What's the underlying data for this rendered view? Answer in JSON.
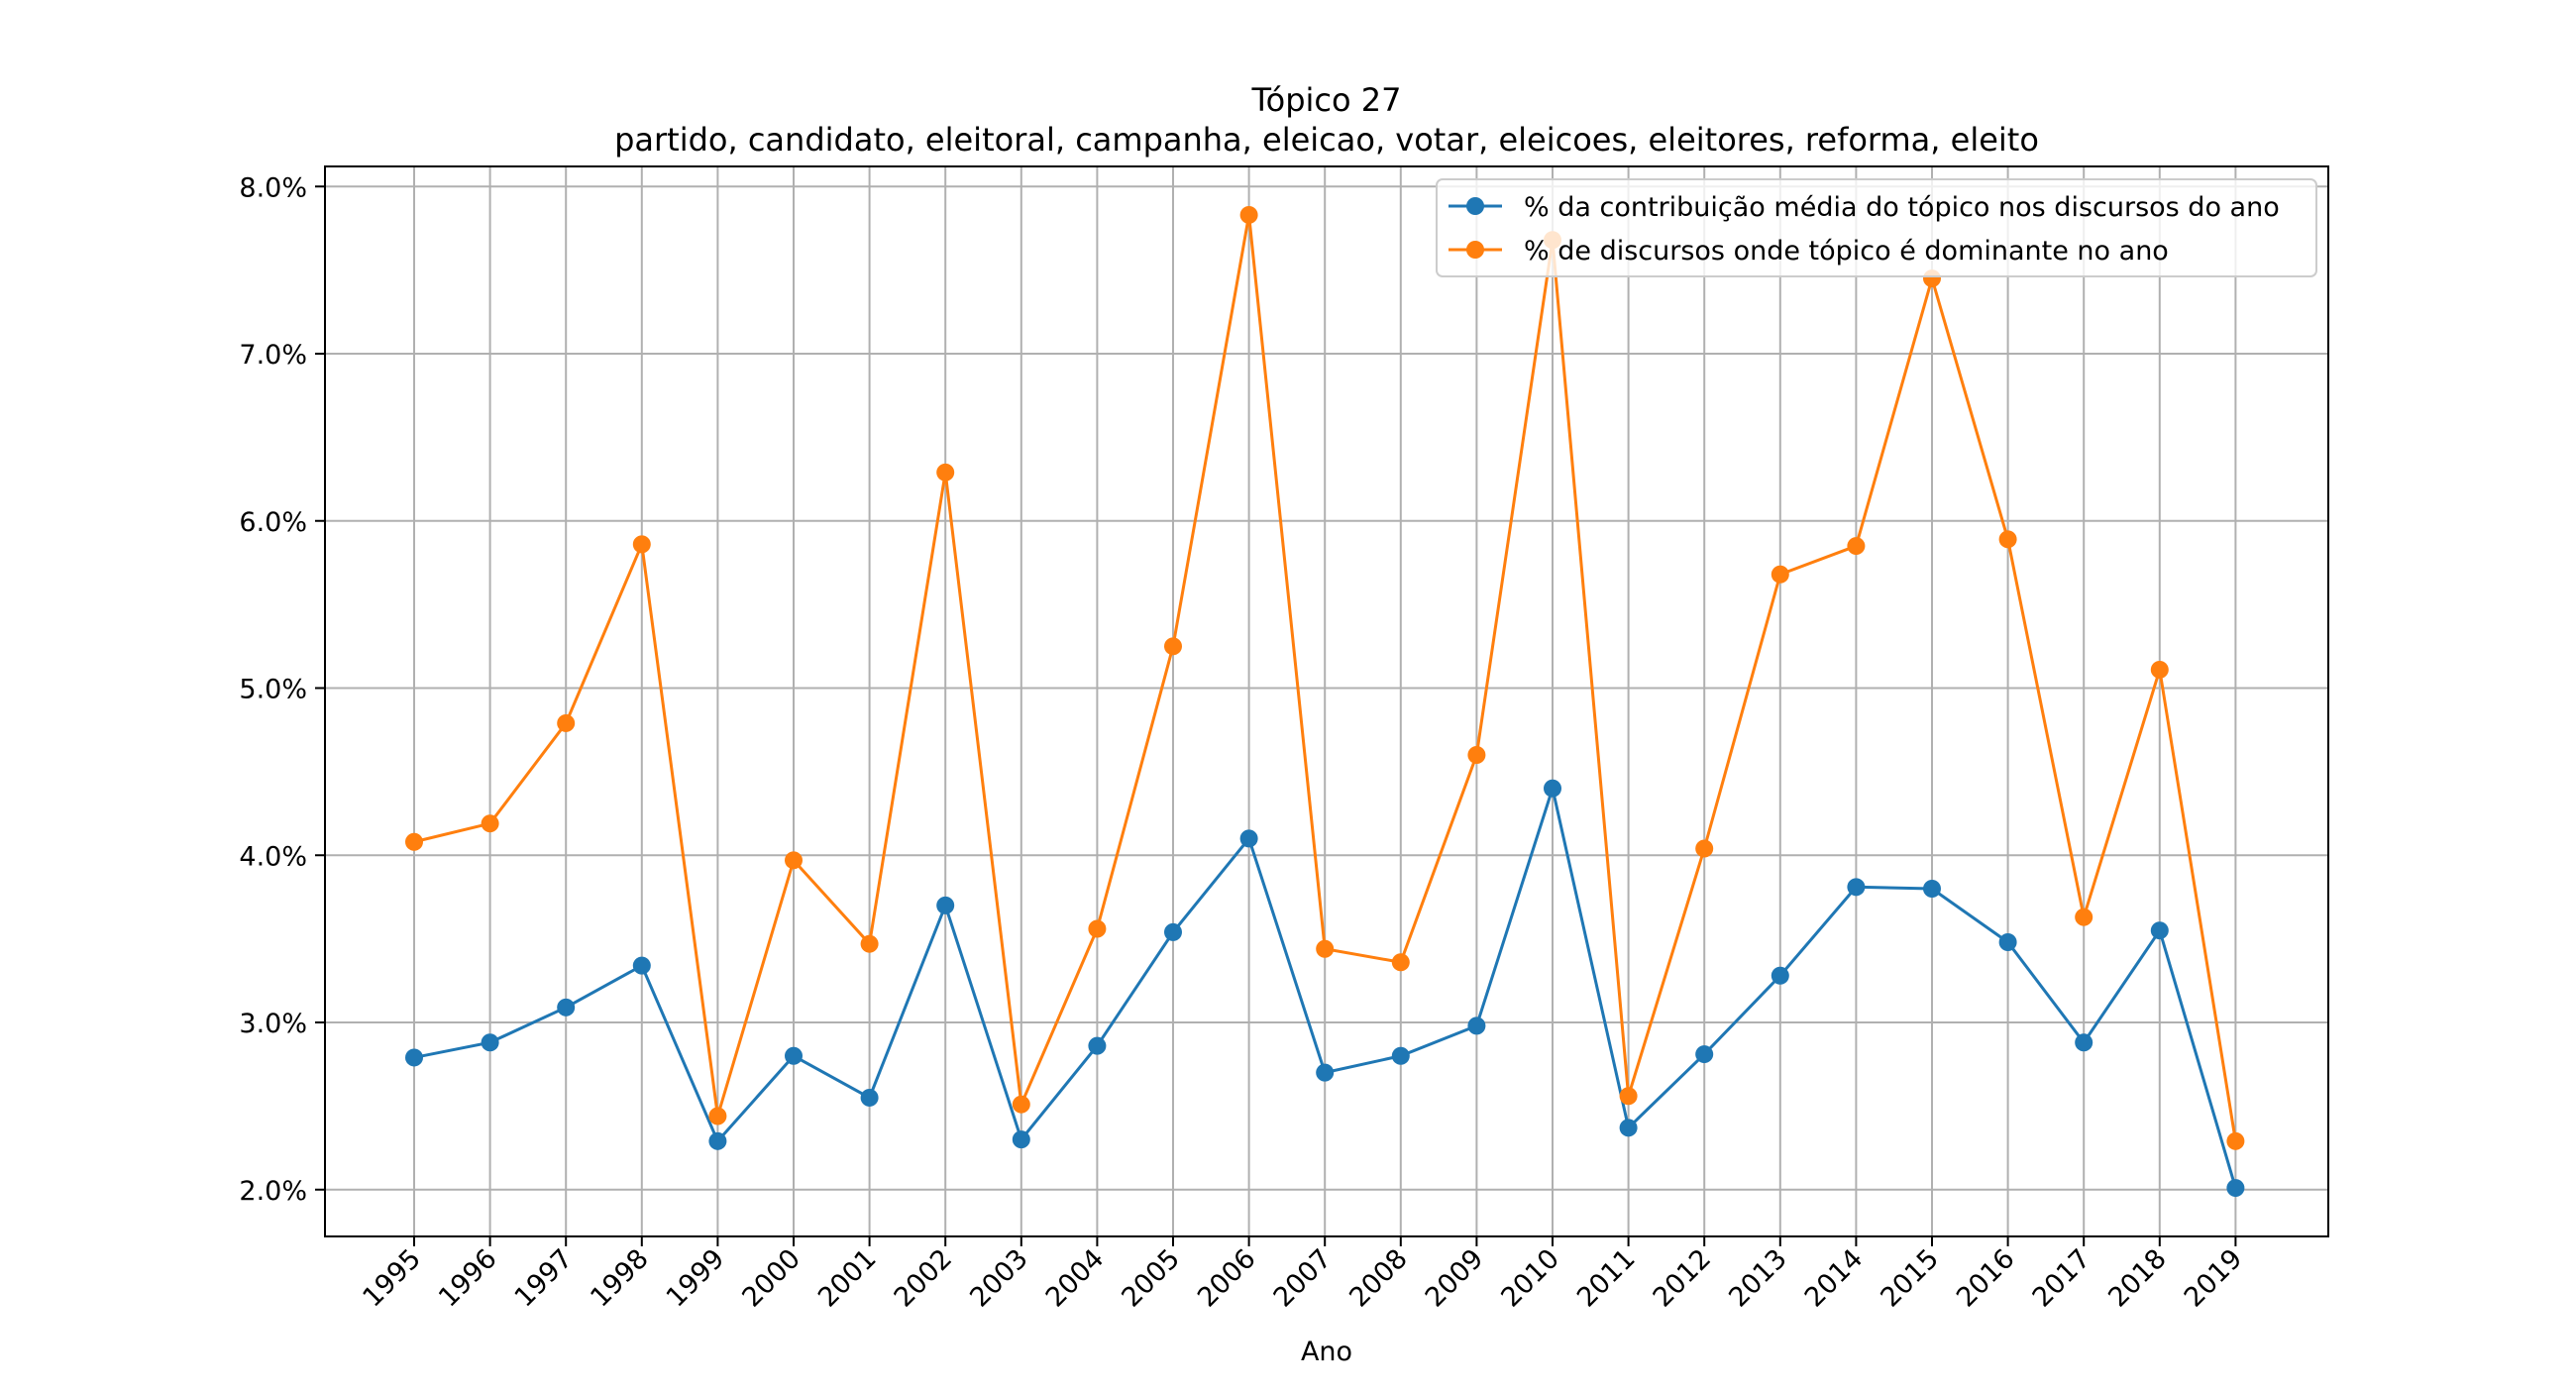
{
  "chart_data": {
    "type": "line",
    "title": "Tópico 27",
    "subtitle": "partido, candidato, eleitoral, campanha, eleicao, votar, eleicoes, eleitores, reforma, eleito",
    "xlabel": "Ano",
    "ylabel": "",
    "ylim": [
      1.72,
      8.12
    ],
    "yticks": [
      2.0,
      3.0,
      4.0,
      5.0,
      6.0,
      7.0,
      8.0
    ],
    "ytick_labels": [
      "2.0%",
      "3.0%",
      "4.0%",
      "5.0%",
      "6.0%",
      "7.0%",
      "8.0%"
    ],
    "grid": true,
    "legend_position": "top-right",
    "x": [
      "1995",
      "1996",
      "1997",
      "1998",
      "1999",
      "2000",
      "2001",
      "2002",
      "2003",
      "2004",
      "2005",
      "2006",
      "2007",
      "2008",
      "2009",
      "2010",
      "2011",
      "2012",
      "2013",
      "2014",
      "2015",
      "2016",
      "2017",
      "2018",
      "2019"
    ],
    "series": [
      {
        "name": "% da contribuição média do tópico nos discursos do ano",
        "color": "#1f77b4",
        "values": [
          2.79,
          2.88,
          3.09,
          3.34,
          2.29,
          2.8,
          2.55,
          3.7,
          2.3,
          2.86,
          3.54,
          4.1,
          2.7,
          2.8,
          2.98,
          4.4,
          2.37,
          2.81,
          3.28,
          3.81,
          3.8,
          3.48,
          2.88,
          3.55,
          2.01
        ]
      },
      {
        "name": "% de discursos onde tópico é dominante no ano",
        "color": "#ff7f0e",
        "values": [
          4.08,
          4.19,
          4.79,
          5.86,
          2.44,
          3.97,
          3.47,
          6.29,
          2.51,
          3.56,
          5.25,
          7.83,
          3.44,
          3.36,
          4.6,
          7.68,
          2.56,
          4.04,
          5.68,
          5.85,
          7.45,
          5.89,
          3.63,
          5.11,
          2.29
        ]
      }
    ]
  }
}
